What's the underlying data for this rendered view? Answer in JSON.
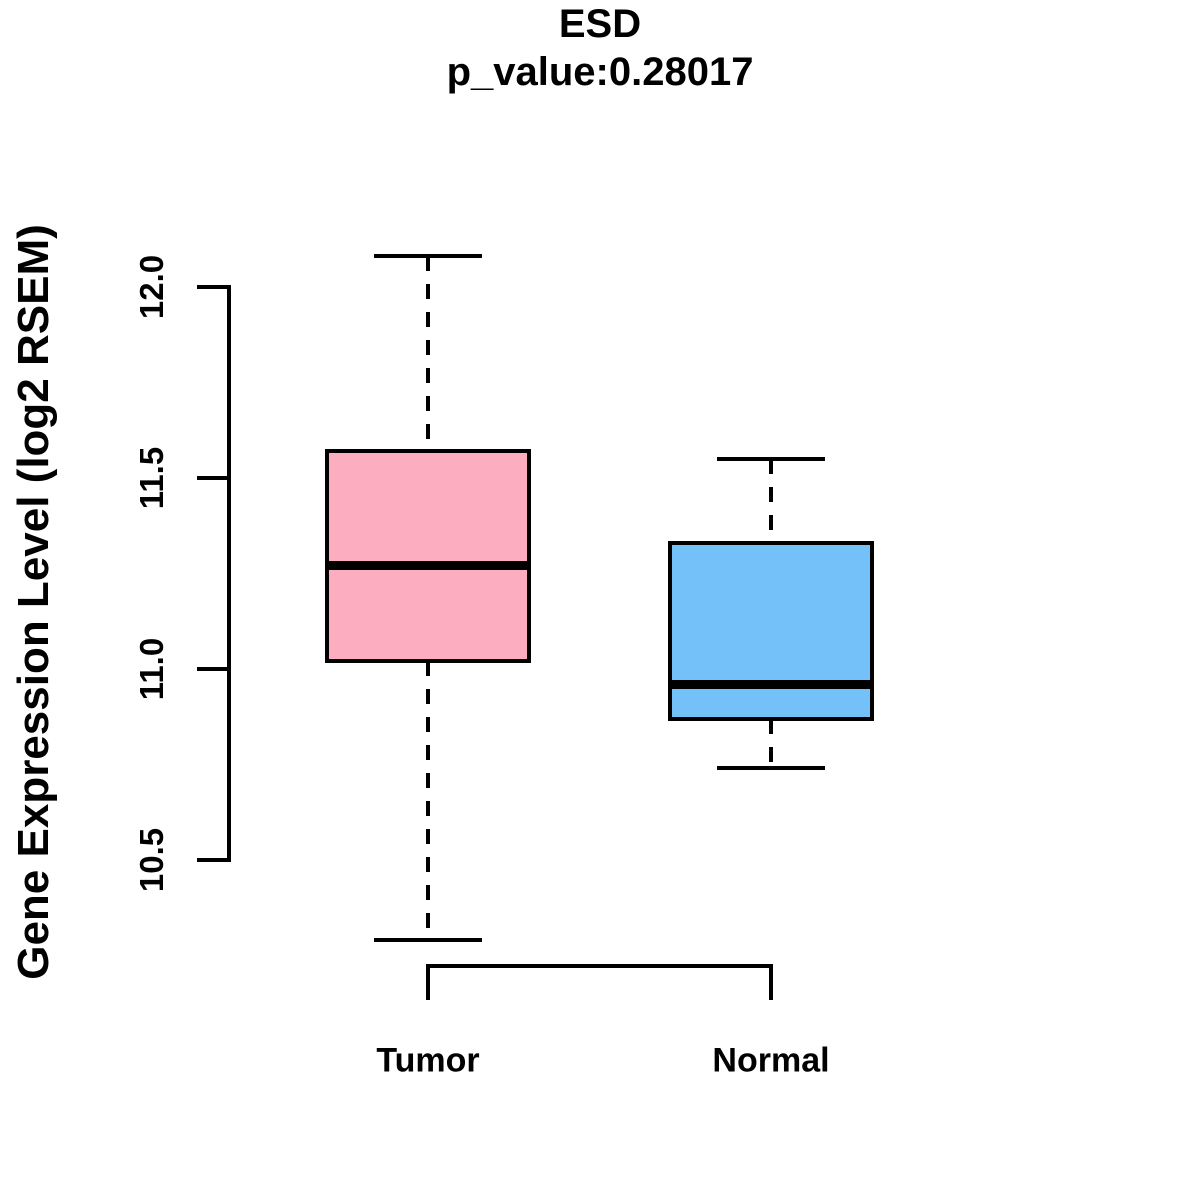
{
  "chart_data": {
    "type": "boxplot",
    "title": "ESD",
    "subtitle": "p_value:0.28017",
    "ylabel": "Gene Expression Level (log2 RSEM)",
    "xlabel": "",
    "ylim": [
      10.5,
      12.0
    ],
    "yticks": [
      "10.5",
      "11.0",
      "11.5",
      "12.0"
    ],
    "grid": false,
    "legend": "none",
    "categories": [
      "Tumor",
      "Normal"
    ],
    "groups": [
      {
        "label": "Tumor",
        "fill_color": "#FCAEC0",
        "whisker_low": 10.29,
        "q1": 11.02,
        "median": 11.27,
        "q3": 11.57,
        "whisker_high": 12.08
      },
      {
        "label": "Normal",
        "fill_color": "#74C0F8",
        "whisker_low": 10.74,
        "q1": 10.87,
        "median": 10.96,
        "q3": 11.33,
        "whisker_high": 11.55
      }
    ],
    "line_color": "#000000",
    "background_color": "#FFFFFF"
  }
}
